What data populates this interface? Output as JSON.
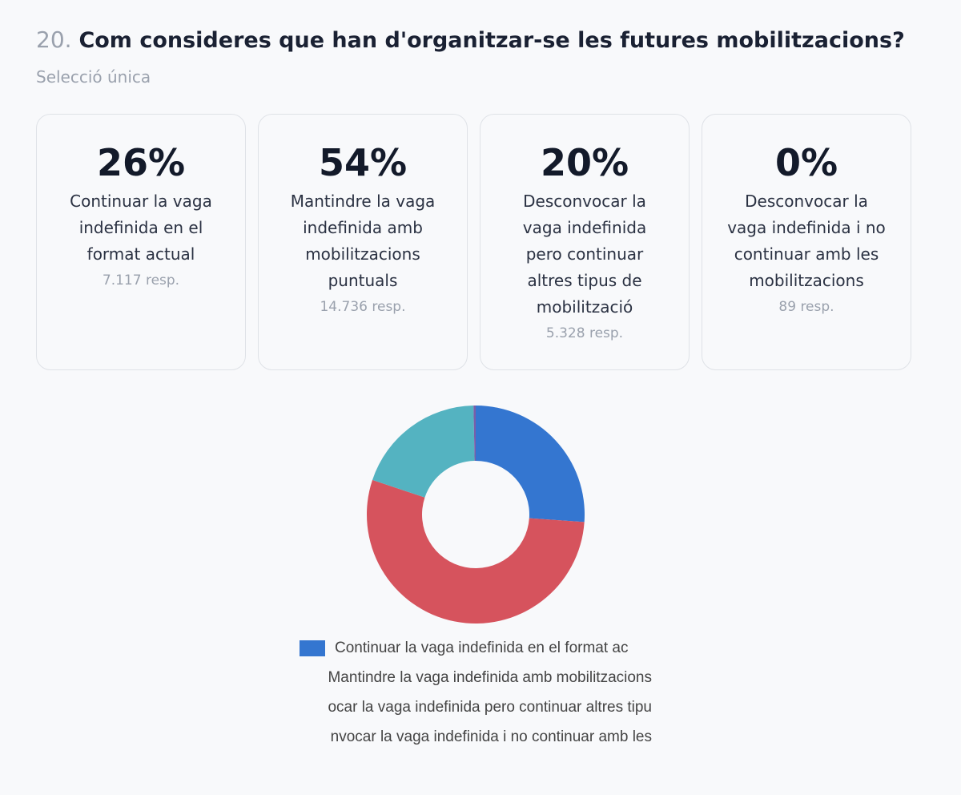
{
  "question": {
    "number": "20.",
    "text": "Com consideres que han d'organitzar-se les futures mobilitzacions?",
    "type": "Selecció única"
  },
  "options": [
    {
      "percent": "26%",
      "label": "Continuar la vaga indefinida en el format actual",
      "responses": "7.117 resp."
    },
    {
      "percent": "54%",
      "label": "Mantindre la vaga indefinida amb mobilitzacions puntuals",
      "responses": "14.736 resp."
    },
    {
      "percent": "20%",
      "label": "Desconvocar la vaga indefinida pero continuar altres tipus de mobilització",
      "responses": "5.328 resp."
    },
    {
      "percent": "0%",
      "label": "Desconvocar la vaga indefinida i no continuar amb les mobilitzacions",
      "responses": "89 resp."
    }
  ],
  "chart_data": {
    "type": "pie",
    "categories": [
      "Continuar la vaga indefinida en el format actual",
      "Mantindre la vaga indefinida amb mobilitzacions puntuals",
      "Desconvocar la vaga indefinida pero continuar altres tipus de mobilització",
      "Desconvocar la vaga indefinida i no continuar amb les mobilitzacions"
    ],
    "values": [
      7117,
      14736,
      5328,
      89
    ],
    "colors": [
      "#3476d0",
      "#d6535d",
      "#54b3c1",
      "#7a5fa8"
    ],
    "donut": true,
    "legend_position": "bottom",
    "legend_entries": [
      "Continuar la vaga indefinida en el format ac",
      "Mantindre la vaga indefinida amb mobilitzacions",
      "ocar la vaga indefinida pero continuar altres tipu",
      "nvocar la vaga indefinida i no continuar amb les"
    ]
  }
}
